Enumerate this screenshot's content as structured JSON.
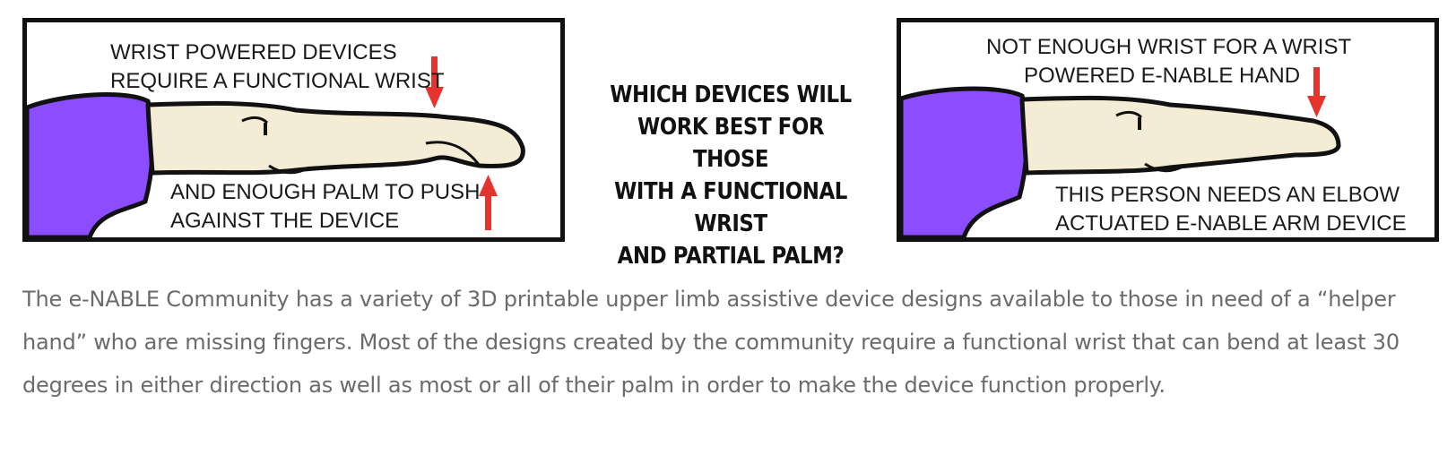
{
  "left_panel": {
    "caption_top": [
      "WRIST POWERED DEVICES",
      "REQUIRE A FUNCTIONAL WRIST"
    ],
    "caption_bottom": [
      "AND ENOUGH PALM TO PUSH",
      "AGAINST THE DEVICE"
    ]
  },
  "center_question": [
    "WHICH DEVICES WILL",
    "WORK BEST FOR THOSE",
    "WITH A FUNCTIONAL WRIST",
    "AND PARTIAL PALM?"
  ],
  "right_panel": {
    "caption_top": [
      "NOT ENOUGH WRIST FOR A WRIST",
      "POWERED E-NABLE HAND"
    ],
    "caption_bottom": [
      "THIS PERSON NEEDS AN ELBOW",
      "ACTUATED E-NABLE ARM DEVICE"
    ]
  },
  "body_paragraph": "The e-NABLE Community has a variety of 3D printable upper limb assistive device designs available to those in need of a “helper hand” who are missing fingers. Most of the designs created by the community require a functional wrist that can bend at least 30 degrees in either direction as well as most or all of their palm in order to make the device function properly.",
  "colors": {
    "sleeve": "#8b4dff",
    "skin": "#f5ecd6",
    "arrow": "#e4342d",
    "outline": "#111111",
    "body_text": "#6b6b6b"
  }
}
